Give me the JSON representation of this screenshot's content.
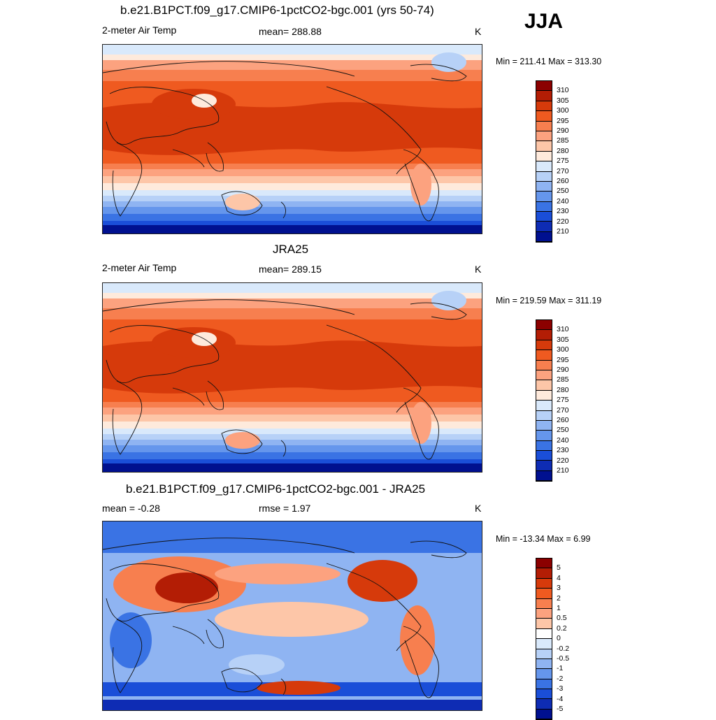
{
  "season": "JJA",
  "panels": [
    {
      "title": "b.e21.B1PCT.f09_g17.CMIP6-1pctCO2-bgc.001 (yrs 50-74)",
      "left_label": "2-meter Air Temp",
      "center_label": "mean= 288.88",
      "units": "K",
      "minmax": "Min = 211.41 Max = 313.30",
      "colorbar": {
        "labels": [
          "310",
          "305",
          "300",
          "295",
          "290",
          "285",
          "280",
          "275",
          "270",
          "260",
          "250",
          "240",
          "230",
          "220",
          "210"
        ],
        "colors": [
          "#8b0000",
          "#b31d05",
          "#d63a0b",
          "#ef5a20",
          "#f77f4f",
          "#fca27f",
          "#fdc6a8",
          "#feeadc",
          "#d9e9fb",
          "#b7d1f7",
          "#8fb4f2",
          "#6596ec",
          "#3a73e4",
          "#1a4ed8",
          "#0e2cb4",
          "#00108f"
        ]
      },
      "map_style": "absolute"
    },
    {
      "title": "JRA25",
      "left_label": "2-meter Air Temp",
      "center_label": "mean= 289.15",
      "units": "K",
      "minmax": "Min = 219.59 Max = 311.19",
      "colorbar": {
        "labels": [
          "310",
          "305",
          "300",
          "295",
          "290",
          "285",
          "280",
          "275",
          "270",
          "260",
          "250",
          "240",
          "230",
          "220",
          "210"
        ],
        "colors": [
          "#8b0000",
          "#b31d05",
          "#d63a0b",
          "#ef5a20",
          "#f77f4f",
          "#fca27f",
          "#fdc6a8",
          "#feeadc",
          "#d9e9fb",
          "#b7d1f7",
          "#8fb4f2",
          "#6596ec",
          "#3a73e4",
          "#1a4ed8",
          "#0e2cb4",
          "#00108f"
        ]
      },
      "map_style": "absolute"
    },
    {
      "title": "b.e21.B1PCT.f09_g17.CMIP6-1pctCO2-bgc.001 - JRA25",
      "left_label": "mean =  -0.28",
      "center_label": "rmse =   1.97",
      "units": "K",
      "minmax": "Min = -13.34 Max =   6.99",
      "colorbar": {
        "labels": [
          "5",
          "4",
          "3",
          "2",
          "1",
          "0.5",
          "0.2",
          "0",
          "-0.2",
          "-0.5",
          "-1",
          "-2",
          "-3",
          "-4",
          "-5"
        ],
        "colors": [
          "#8b0000",
          "#b31d05",
          "#d63a0b",
          "#ef5a20",
          "#f77f4f",
          "#fca27f",
          "#fdc6a8",
          "#ffffff",
          "#d9e9fb",
          "#b7d1f7",
          "#8fb4f2",
          "#6596ec",
          "#3a73e4",
          "#1a4ed8",
          "#0e2cb4",
          "#00108f"
        ]
      },
      "map_style": "difference"
    }
  ]
}
